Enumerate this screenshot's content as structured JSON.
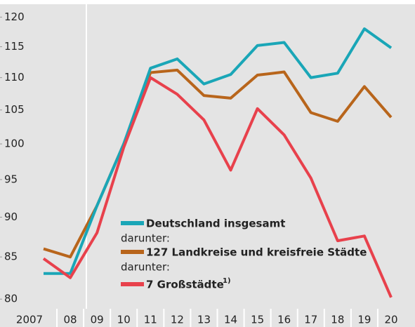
{
  "chart_data": {
    "type": "line",
    "categories": [
      "2007",
      "08",
      "09",
      "10",
      "11",
      "12",
      "13",
      "14",
      "15",
      "16",
      "17",
      "18",
      "19",
      "20"
    ],
    "series": [
      {
        "name": "Deutschland insgesamt",
        "color": "#1aa6b7",
        "values": [
          83,
          83,
          91.5,
          100,
          111.5,
          113,
          109,
          110.5,
          115.2,
          115.7,
          110,
          110.7,
          118,
          114.8
        ]
      },
      {
        "name": "127 Landkreise und kreisfreie Städte",
        "color": "#b8651b",
        "values": [
          86,
          85,
          91.5,
          100,
          110.8,
          111.2,
          107.2,
          106.8,
          110.4,
          110.9,
          104.6,
          103.3,
          108.6,
          103.9
        ]
      },
      {
        "name": "7 Großstädte",
        "color": "#e8414c",
        "values": [
          84.8,
          82.5,
          88,
          99.5,
          110,
          107.4,
          103.5,
          96.3,
          105.2,
          101.3,
          95.2,
          87,
          87.6,
          80.2
        ]
      }
    ],
    "legend_captions": [
      "darunter:",
      "darunter:"
    ],
    "note_marker": "1)",
    "ylim": [
      78.5,
      122
    ],
    "yticks": [
      80,
      85,
      90,
      95,
      100,
      105,
      110,
      115,
      120
    ],
    "log_scale": true
  }
}
